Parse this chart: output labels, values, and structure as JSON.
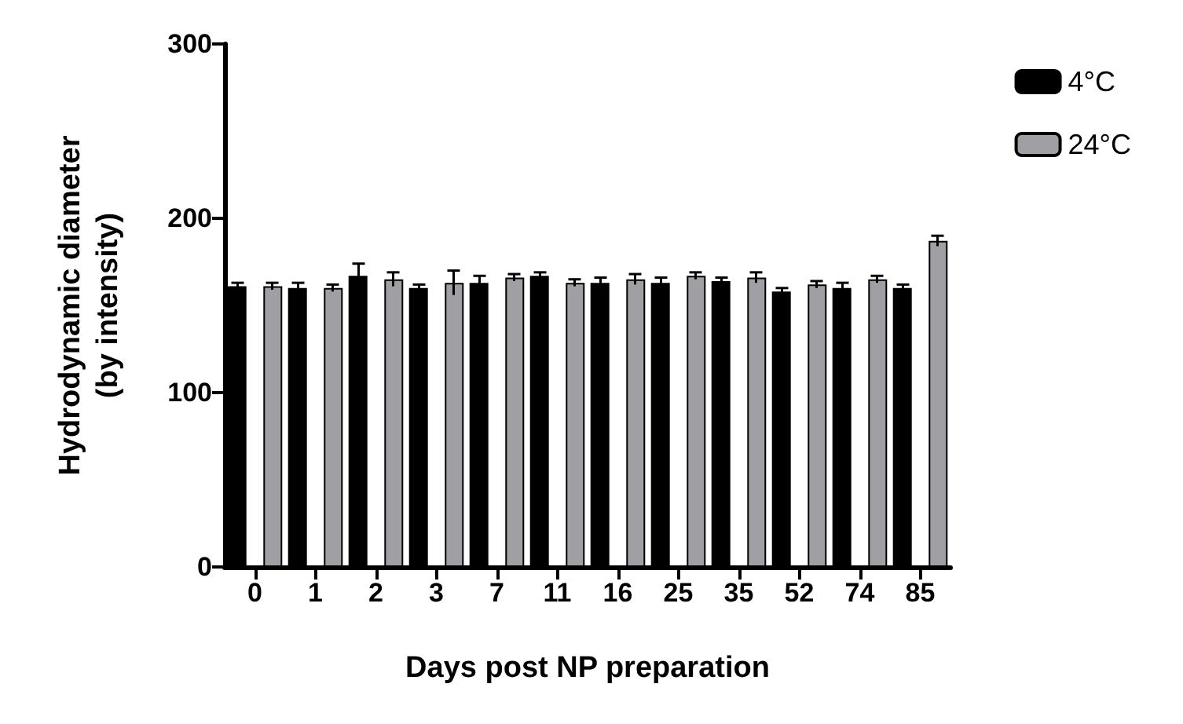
{
  "chart_data": {
    "type": "bar",
    "xlabel": "Days post NP preparation",
    "ylabel": "Hydrodynamic diameter\n(by intensity)",
    "categories": [
      "0",
      "1",
      "2",
      "3",
      "7",
      "11",
      "16",
      "25",
      "35",
      "52",
      "74",
      "85"
    ],
    "series": [
      {
        "name": "4°C",
        "color": "#000000",
        "values": [
          161,
          160,
          167,
          160,
          163,
          167,
          163,
          163,
          164,
          158,
          160,
          160
        ],
        "errors": [
          2,
          3,
          7,
          2,
          4,
          2,
          3,
          3,
          2,
          2,
          3,
          2
        ]
      },
      {
        "name": "24°C",
        "color": "#a0a0a4",
        "values": [
          161,
          160,
          165,
          163,
          166,
          163,
          165,
          167,
          166,
          162,
          165,
          187
        ],
        "errors": [
          2,
          2,
          4,
          7,
          2,
          2,
          3,
          2,
          3,
          2,
          2,
          3
        ]
      }
    ],
    "ylim": [
      0,
      300
    ],
    "yticks": [
      0,
      100,
      200,
      300
    ],
    "grid": false,
    "legend": "top right"
  }
}
